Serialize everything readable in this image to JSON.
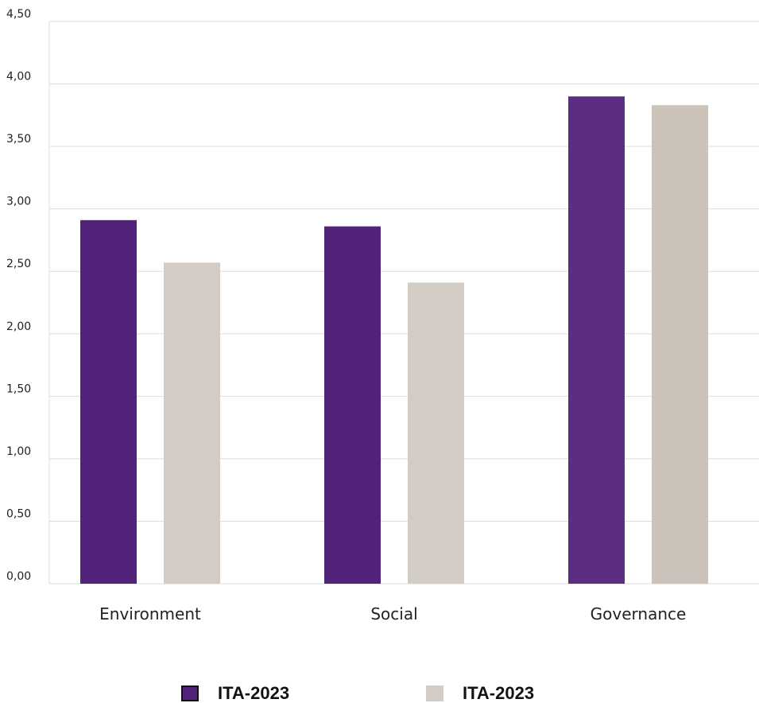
{
  "chart_data": {
    "type": "bar",
    "categories": [
      "Environment",
      "Social",
      "Governance"
    ],
    "series": [
      {
        "name": "ITA-2023",
        "colors": [
          "#51237a",
          "#51237a",
          "#5c2d82"
        ],
        "values": [
          2.91,
          2.86,
          3.9
        ]
      },
      {
        "name": "ITA-2023",
        "colors": [
          "#d3ccc4",
          "#d3ccc4",
          "#cbc2ba"
        ],
        "values": [
          2.57,
          2.41,
          3.83
        ]
      }
    ],
    "ylim": [
      0,
      4.5
    ],
    "yticks": [
      "0,00",
      "0,50",
      "1,00",
      "1,50",
      "2,00",
      "2,50",
      "3,00",
      "3,50",
      "4,00",
      "4,50"
    ],
    "grid": true,
    "legend_position": "bottom",
    "legend_swatch_border": "#111111",
    "gridline_color": "#dddddd",
    "title": "",
    "xlabel": "",
    "ylabel": ""
  }
}
